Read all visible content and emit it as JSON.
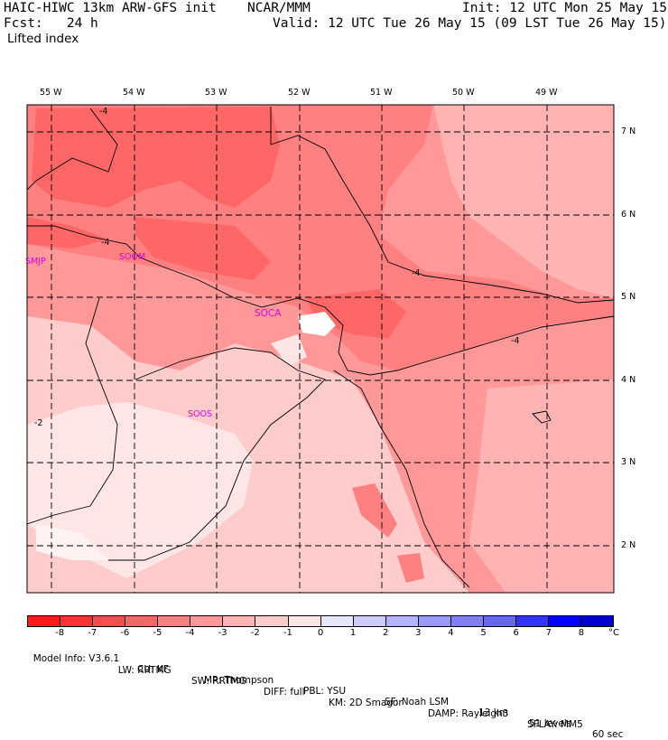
{
  "header": {
    "model": "HAIC-HIWC 13km ARW-GFS init",
    "org": "NCAR/MMM",
    "init": "Init: 12 UTC Mon 25 May 15",
    "fcst": "Fcst:   24 h",
    "valid": "Valid: 12 UTC Tue 26 May 15 (09 LST Tue 26 May 15)",
    "field": "Lifted index"
  },
  "axes": {
    "lon_labels": [
      "55 W",
      "54 W",
      "53 W",
      "52 W",
      "51 W",
      "50 W",
      "49 W"
    ],
    "lat_labels": [
      "7 N",
      "6 N",
      "5 N",
      "4 N",
      "3 N",
      "2 N"
    ]
  },
  "stations": [
    "SMJP",
    "SOCA",
    "SOOS",
    "SOOM"
  ],
  "contour_labels": [
    "-4",
    "-4",
    "-4",
    "-4",
    "-2"
  ],
  "colorbar": {
    "ticks": [
      "-8",
      "-7",
      "-6",
      "-5",
      "-4",
      "-3",
      "-2",
      "-1",
      "0",
      "1",
      "2",
      "3",
      "4",
      "5",
      "6",
      "7",
      "8"
    ],
    "unit": "°C",
    "colors": [
      "#ff1a1a",
      "#ff3333",
      "#ff4d4d",
      "#ff6666",
      "#ff8080",
      "#ff9999",
      "#ffb3b3",
      "#ffcccc",
      "#ffe6e6",
      "#e6e6ff",
      "#ccccff",
      "#b3b3ff",
      "#9999ff",
      "#8080ff",
      "#6666ff",
      "#3333ff",
      "#0000ff",
      "#0000cc"
    ]
  },
  "footer": {
    "line1": [
      "Model Info: V3.6.1",
      "CU: KF",
      "MP: Thompson",
      "PBL: YSU",
      "SF: Noah LSM",
      "13 km",
      "51 levels",
      "60 sec"
    ],
    "line2": [
      "LW: RRTMG",
      "SW: RRTMG",
      "DIFF: full",
      "KM: 2D Smagor",
      "DAMP: Rayleigh3",
      "SFLAY: MM5"
    ]
  }
}
